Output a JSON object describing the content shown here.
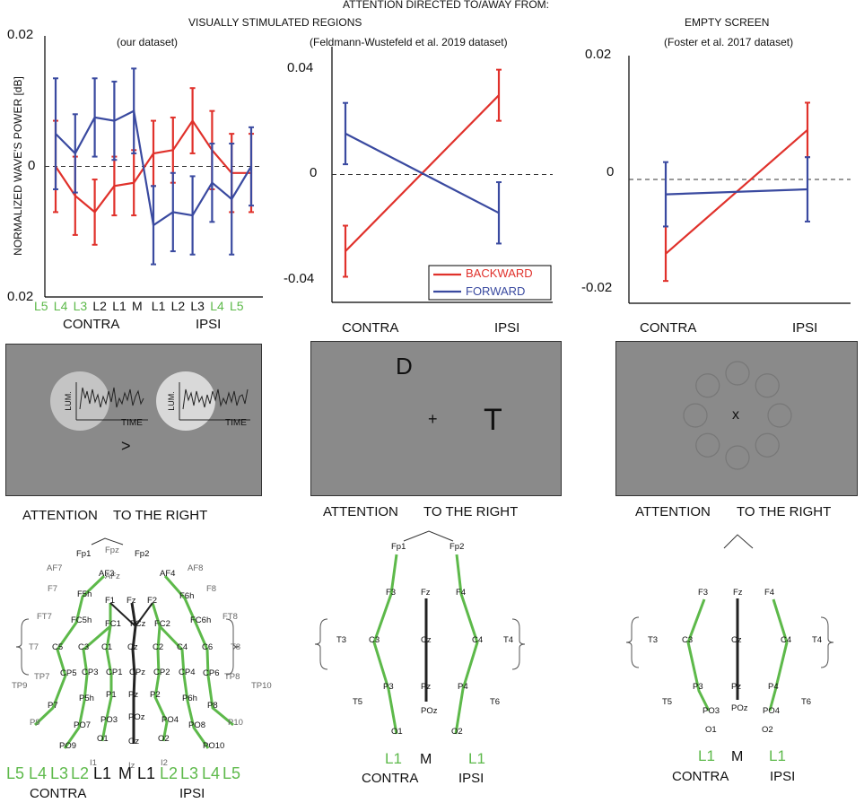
{
  "header": {
    "main_title": "ATTENTION DIRECTED TO/AWAY FROM:",
    "left_title": "VISUALLY STIMULATED REGIONS",
    "left_sub": "(our dataset)",
    "mid_sub": "(Feldmann-Wustefeld et al. 2019 dataset)",
    "right_title": "EMPTY SCREEN",
    "right_sub": "(Foster et al. 2017 dataset)"
  },
  "colors": {
    "backward": "#e0312b",
    "forward": "#3a4aa0",
    "green": "#5db94a",
    "screen": "#8a8a8a"
  },
  "chart_data": [
    {
      "type": "line",
      "ylabel": "NORMALIZED  WAVE'S POWER [dB]",
      "ylim": [
        -0.02,
        0.02
      ],
      "yticks": [
        "0.02",
        "0",
        "0.02"
      ],
      "categories": [
        "L5",
        "L4",
        "L3",
        "L2",
        "L1",
        "M",
        "L1",
        "L2",
        "L3",
        "L4",
        "L5"
      ],
      "category_colors": [
        "green",
        "green",
        "green",
        "black",
        "black",
        "black",
        "black",
        "black",
        "black",
        "green",
        "green"
      ],
      "groups": [
        "CONTRA",
        "IPSI"
      ],
      "series": [
        {
          "name": "BACKWARD",
          "color": "backward",
          "values": [
            0.0,
            -0.0045,
            -0.007,
            -0.003,
            -0.0025,
            0.002,
            0.0025,
            0.007,
            0.0025,
            -0.001,
            -0.001
          ],
          "err": [
            0.007,
            0.006,
            0.005,
            0.0045,
            0.005,
            0.005,
            0.005,
            0.005,
            0.006,
            0.006,
            0.006
          ]
        },
        {
          "name": "FORWARD",
          "color": "forward",
          "values": [
            0.005,
            0.002,
            0.0075,
            0.007,
            0.0085,
            -0.009,
            -0.007,
            -0.0075,
            -0.0025,
            -0.005,
            0.0
          ],
          "err": [
            0.0085,
            0.006,
            0.006,
            0.006,
            0.0065,
            0.006,
            0.006,
            0.006,
            0.006,
            0.0085,
            0.006
          ]
        }
      ]
    },
    {
      "type": "line",
      "ylim": [
        -0.05,
        0.05
      ],
      "yticks": [
        "0.04",
        "0",
        "-0.04"
      ],
      "categories": [
        "CONTRA",
        "IPSI"
      ],
      "legend": [
        "BACKWARD",
        "FORWARD"
      ],
      "series": [
        {
          "name": "BACKWARD",
          "color": "backward",
          "values": [
            -0.03,
            0.031
          ],
          "err": [
            0.01,
            0.01
          ]
        },
        {
          "name": "FORWARD",
          "color": "forward",
          "values": [
            0.016,
            -0.015
          ],
          "err": [
            0.012,
            0.012
          ]
        }
      ]
    },
    {
      "type": "line",
      "ylim": [
        -0.025,
        0.025
      ],
      "yticks": [
        "0.02",
        "0",
        "-0.02"
      ],
      "categories": [
        "CONTRA",
        "IPSI"
      ],
      "series": [
        {
          "name": "BACKWARD",
          "color": "backward",
          "values": [
            -0.015,
            0.01
          ],
          "err": [
            0.0055,
            0.0055
          ]
        },
        {
          "name": "FORWARD",
          "color": "forward",
          "values": [
            -0.003,
            -0.002
          ],
          "err": [
            0.0065,
            0.0065
          ]
        }
      ]
    }
  ],
  "stimuli": {
    "left_axis_y": "LUM.",
    "left_axis_x": "TIME",
    "left_arrow": ">",
    "mid_letter_top": "D",
    "mid_letter_right": "T",
    "mid_fix": "+",
    "right_fix": "x",
    "caption_a": "ATTENTION",
    "caption_b": "TO THE RIGHT"
  },
  "electrodes": {
    "left": [
      "Fp1",
      "Fpz",
      "Fp2",
      "AF7",
      "AF3",
      "AFz",
      "AF4",
      "AF8",
      "F7",
      "F5h",
      "F1",
      "Fz",
      "F2",
      "F6h",
      "F8",
      "FT7",
      "FC5h",
      "FC1",
      "FCz",
      "FC2",
      "FC6h",
      "FT8",
      "T7",
      "C5",
      "C3",
      "C1",
      "Cz",
      "C2",
      "C4",
      "C6",
      "T8",
      "TP7",
      "CP5",
      "CP3",
      "CP1",
      "CPz",
      "CP2",
      "CP4",
      "CP6",
      "TP8",
      "TP9",
      "TP10",
      "P7",
      "P5h",
      "P1",
      "Pz",
      "P2",
      "P6h",
      "P8",
      "P9",
      "P10",
      "PO7",
      "PO3",
      "POz",
      "PO4",
      "PO8",
      "PO9",
      "PO10",
      "O1",
      "Oz",
      "O2",
      "I1",
      "Iz",
      "I2"
    ],
    "mid": [
      "Fp1",
      "Fp2",
      "F3",
      "Fz",
      "F4",
      "T3",
      "C3",
      "Cz",
      "C4",
      "T4",
      "T5",
      "P3",
      "Pz",
      "P4",
      "T6",
      "POz",
      "O1",
      "O2"
    ],
    "right": [
      "F3",
      "Fz",
      "F4",
      "T3",
      "C3",
      "Cz",
      "C4",
      "T4",
      "T5",
      "P3",
      "Pz",
      "P4",
      "T6",
      "PO3",
      "POz",
      "PO4",
      "O1",
      "O2"
    ]
  },
  "bottom_labels": {
    "left_row": [
      "L5",
      "L4",
      "L3",
      "L2",
      "L1",
      "M",
      "L1",
      "L2",
      "L3",
      "L4",
      "L5"
    ],
    "left_groups": [
      "CONTRA",
      "IPSI"
    ],
    "mid_row": [
      "L1",
      "M",
      "L1"
    ],
    "mid_groups": [
      "CONTRA",
      "IPSI"
    ],
    "right_row": [
      "L1",
      "M",
      "L1"
    ],
    "right_groups": [
      "CONTRA",
      "IPSI"
    ]
  }
}
